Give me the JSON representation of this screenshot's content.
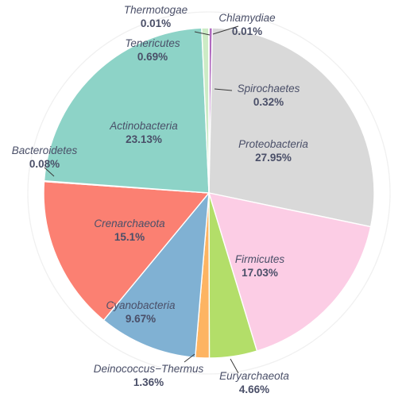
{
  "chart_data": {
    "type": "pie",
    "title": "",
    "slices": [
      {
        "label": "Chlamydiae",
        "value": 0.01,
        "display": "0.01%",
        "color": "#e8c2ea"
      },
      {
        "label": "Spirochaetes",
        "value": 0.32,
        "display": "0.32%",
        "color": "#b069bf"
      },
      {
        "label": "Proteobacteria",
        "value": 27.95,
        "display": "27.95%",
        "color": "#d9d9d9"
      },
      {
        "label": "Firmicutes",
        "value": 17.03,
        "display": "17.03%",
        "color": "#fccde5"
      },
      {
        "label": "Euryarchaeota",
        "value": 4.66,
        "display": "4.66%",
        "color": "#b3de69"
      },
      {
        "label": "Deinococcus−Thermus",
        "value": 1.36,
        "display": "1.36%",
        "color": "#fdb462"
      },
      {
        "label": "Cyanobacteria",
        "value": 9.67,
        "display": "9.67%",
        "color": "#80b1d3"
      },
      {
        "label": "Crenarchaeota",
        "value": 15.1,
        "display": "15.1%",
        "color": "#fb8072"
      },
      {
        "label": "Bacteroidetes",
        "value": 0.08,
        "display": "0.08%",
        "color": "#ffed6f"
      },
      {
        "label": "Actinobacteria",
        "value": 23.13,
        "display": "23.13%",
        "color": "#8dd3c7"
      },
      {
        "label": "Tenericutes",
        "value": 0.69,
        "display": "0.69%",
        "color": "#ccebc5"
      },
      {
        "label": "Thermotogae",
        "value": 0.01,
        "display": "0.01%",
        "color": "#bc80bd"
      }
    ]
  }
}
